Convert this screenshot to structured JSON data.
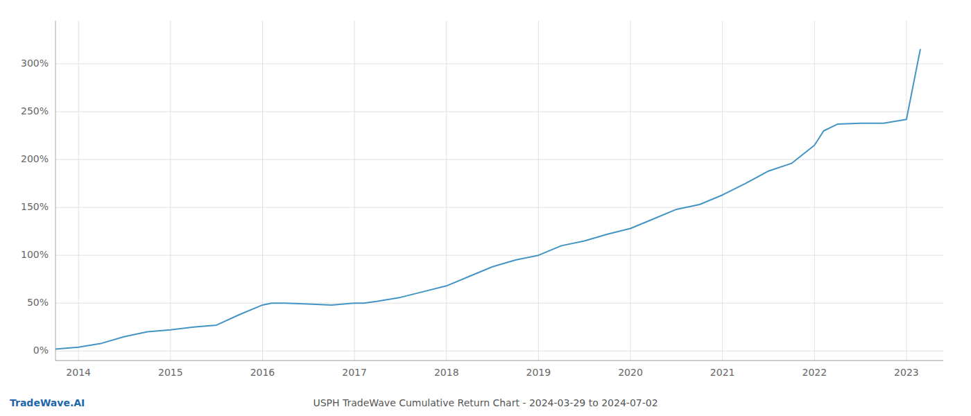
{
  "chart_data": {
    "type": "line",
    "title": "USPH TradeWave Cumulative Return Chart - 2024-03-29 to 2024-07-02",
    "annotations": [
      "TradeWave.AI"
    ],
    "color": "#4393c3",
    "grid": true,
    "x": [
      2013.75,
      2014.0,
      2014.25,
      2014.5,
      2014.75,
      2015.0,
      2015.25,
      2015.5,
      2015.75,
      2016.0,
      2016.1,
      2016.25,
      2016.5,
      2016.75,
      2017.0,
      2017.1,
      2017.25,
      2017.5,
      2017.75,
      2018.0,
      2018.25,
      2018.5,
      2018.75,
      2019.0,
      2019.25,
      2019.5,
      2019.75,
      2020.0,
      2020.25,
      2020.5,
      2020.75,
      2021.0,
      2021.25,
      2021.5,
      2021.75,
      2022.0,
      2022.1,
      2022.25,
      2022.5,
      2022.75,
      2023.0,
      2023.15
    ],
    "values": [
      2,
      4,
      8,
      15,
      20,
      22,
      25,
      27,
      38,
      48,
      50,
      50,
      49,
      48,
      50,
      50,
      52,
      56,
      62,
      68,
      78,
      88,
      95,
      100,
      110,
      115,
      122,
      128,
      138,
      148,
      153,
      163,
      175,
      188,
      196,
      215,
      230,
      237,
      238,
      238,
      242,
      315
    ],
    "xlim": [
      2013.75,
      2023.4
    ],
    "xticks": [
      2014,
      2015,
      2016,
      2017,
      2018,
      2019,
      2020,
      2021,
      2022,
      2023
    ],
    "ylim": [
      -10,
      345
    ],
    "yticks": [
      {
        "value": 0,
        "label": "0%"
      },
      {
        "value": 50,
        "label": "50%"
      },
      {
        "value": 100,
        "label": "100%"
      },
      {
        "value": 150,
        "label": "150%"
      },
      {
        "value": 200,
        "label": "200%"
      },
      {
        "value": 250,
        "label": "250%"
      },
      {
        "value": 300,
        "label": "300%"
      }
    ]
  }
}
